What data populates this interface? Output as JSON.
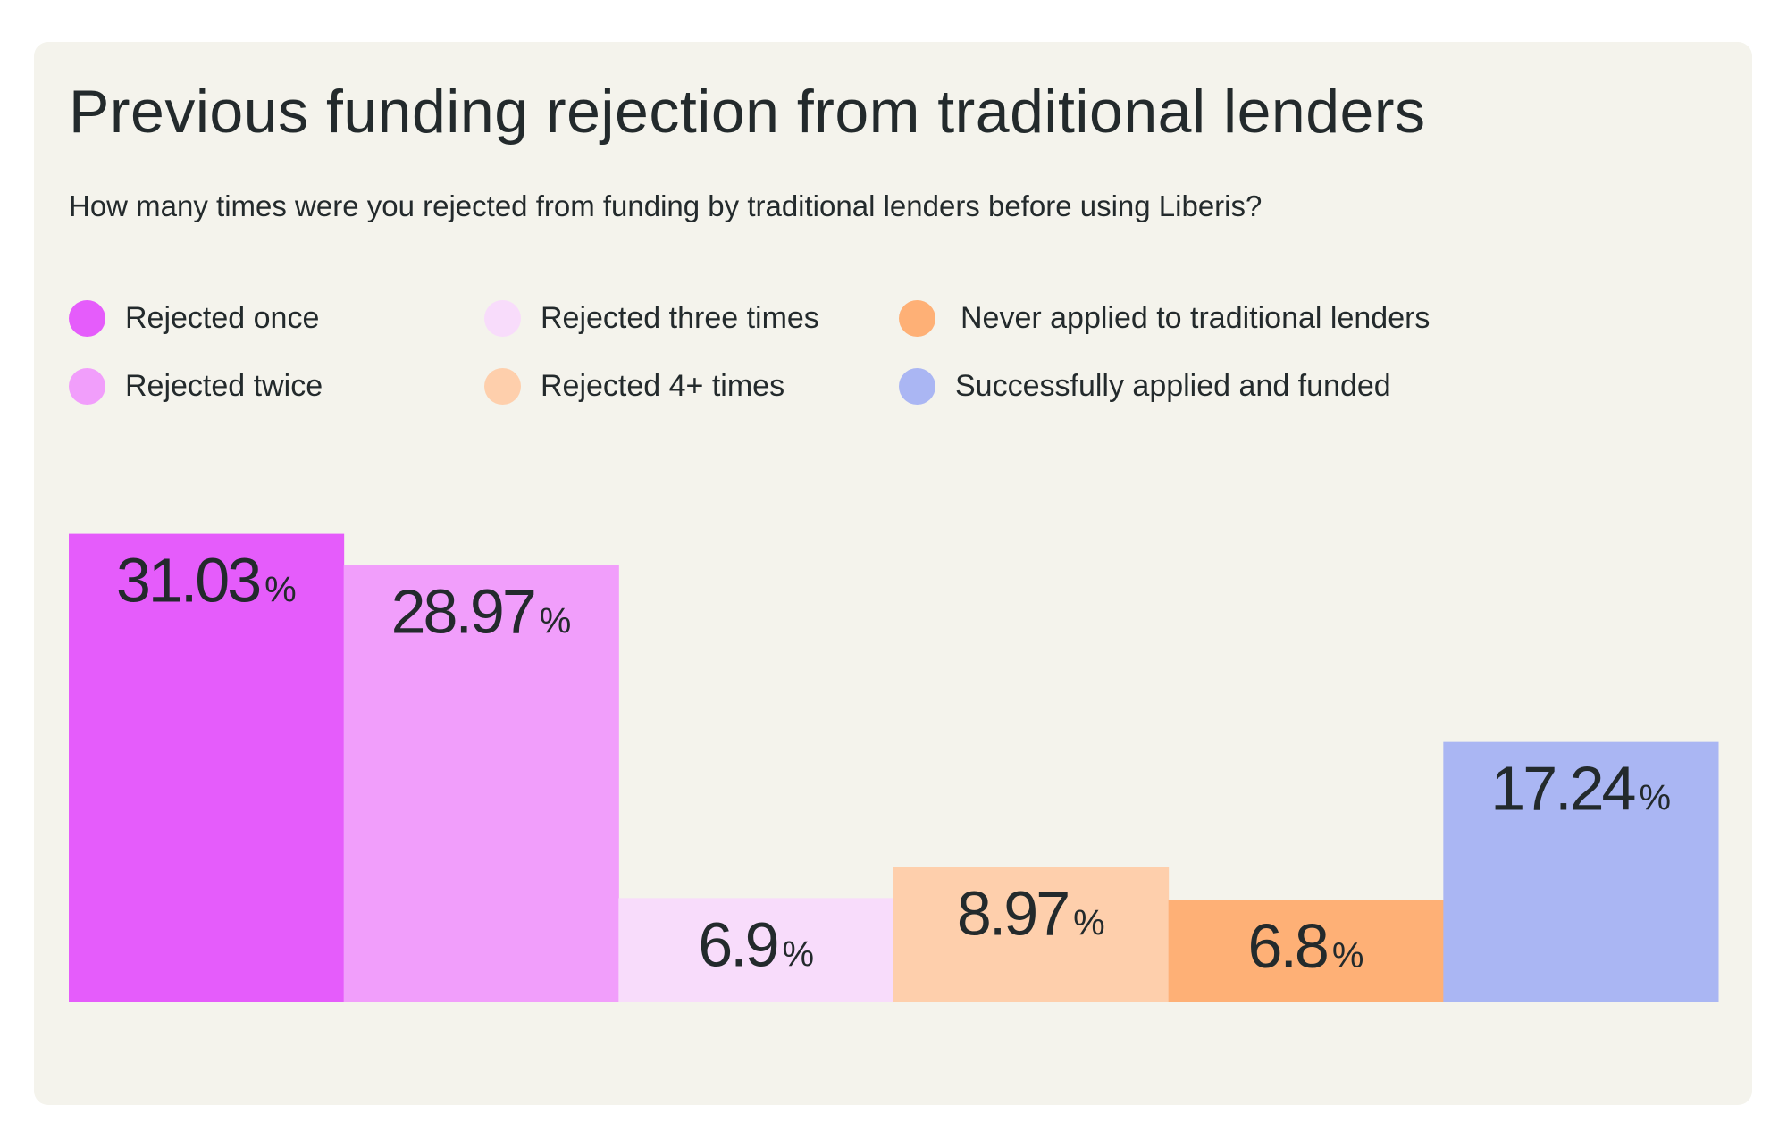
{
  "chart_data": {
    "type": "bar",
    "title": "Previous funding rejection from traditional lenders",
    "subtitle": "How many times were you rejected from funding by traditional lenders before using Liberis?",
    "categories": [
      "Rejected once",
      "Rejected twice",
      "Rejected three times",
      "Rejected 4+ times",
      "Never applied to traditional lenders",
      "Successfully applied and funded"
    ],
    "values": [
      31.03,
      28.97,
      6.9,
      8.97,
      6.8,
      17.24
    ],
    "labels": [
      "31.03",
      "28.97",
      "6.9",
      "8.97",
      "6.8",
      "17.24"
    ],
    "unit": "%",
    "colors": [
      "#e55cfb",
      "#f19efb",
      "#f8dcfb",
      "#fecfac",
      "#feb076",
      "#aab6f3"
    ],
    "legend": [
      {
        "label": "Rejected once",
        "color": "#e55cfb"
      },
      {
        "label": "Rejected three times",
        "color": "#f8dcfb"
      },
      {
        "label": "Never applied to traditional lenders",
        "color": "#feb076"
      },
      {
        "label": "Rejected twice",
        "color": "#f19efb"
      },
      {
        "label": "Rejected 4+ times",
        "color": "#fecfac"
      },
      {
        "label": "Successfully applied and funded",
        "color": "#aab6f3"
      }
    ],
    "legend_placement": "top",
    "grid": false,
    "axes_visible": false,
    "ylim": [
      0,
      32
    ]
  }
}
